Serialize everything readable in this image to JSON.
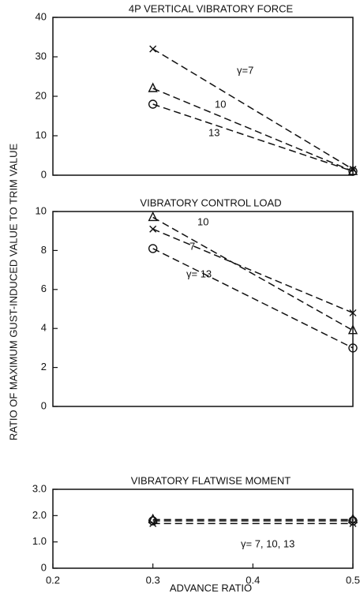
{
  "ylabel": "RATIO OF MAXIMUM GUST-INDUCED VALUE TO TRIM VALUE",
  "chart_data": [
    {
      "type": "line",
      "title": "4P VERTICAL VIBRATORY FORCE",
      "x": [
        0.3,
        0.5
      ],
      "xlim": [
        0.2,
        0.5
      ],
      "ylim": [
        0,
        40
      ],
      "yticks": [
        0,
        10,
        20,
        30,
        40
      ],
      "series": [
        {
          "name": "γ=7",
          "color": "#111111",
          "marker": "x",
          "values": [
            32,
            1.5
          ]
        },
        {
          "name": "10",
          "color": "#111111",
          "marker": "triangle",
          "values": [
            22,
            1
          ]
        },
        {
          "name": "13",
          "color": "#111111",
          "marker": "circle",
          "values": [
            18,
            1
          ]
        }
      ]
    },
    {
      "type": "line",
      "title": "VIBRATORY CONTROL LOAD",
      "x": [
        0.3,
        0.5
      ],
      "xlim": [
        0.2,
        0.5
      ],
      "ylim": [
        0,
        10
      ],
      "yticks": [
        0,
        2,
        4,
        6,
        8,
        10
      ],
      "series": [
        {
          "name": "10",
          "color": "#111111",
          "marker": "triangle",
          "values": [
            9.7,
            3.9
          ]
        },
        {
          "name": "7",
          "color": "#111111",
          "marker": "x",
          "values": [
            9.1,
            4.8
          ]
        },
        {
          "name": "γ= 13",
          "color": "#111111",
          "marker": "circle",
          "values": [
            8.1,
            3.0
          ]
        }
      ]
    },
    {
      "type": "line",
      "title": "VIBRATORY FLATWISE MOMENT",
      "annotation": "γ= 7, 10, 13",
      "x": [
        0.3,
        0.5
      ],
      "xlim": [
        0.2,
        0.5
      ],
      "xticks": [
        0.2,
        0.3,
        0.4,
        0.5
      ],
      "xlabel": "ADVANCE RATIO",
      "ylim": [
        0,
        3
      ],
      "yticks": [
        0,
        {
          "value": 1,
          "label": "1.0"
        },
        {
          "value": 2,
          "label": "2.0"
        },
        {
          "value": 3,
          "label": "3.0"
        }
      ],
      "series": [
        {
          "color": "#111111",
          "marker": "triangle",
          "values": [
            1.85,
            1.85
          ]
        },
        {
          "color": "#111111",
          "marker": "circle",
          "values": [
            1.8,
            1.8
          ]
        },
        {
          "color": "#111111",
          "marker": "x",
          "values": [
            1.7,
            1.7
          ]
        }
      ]
    }
  ]
}
